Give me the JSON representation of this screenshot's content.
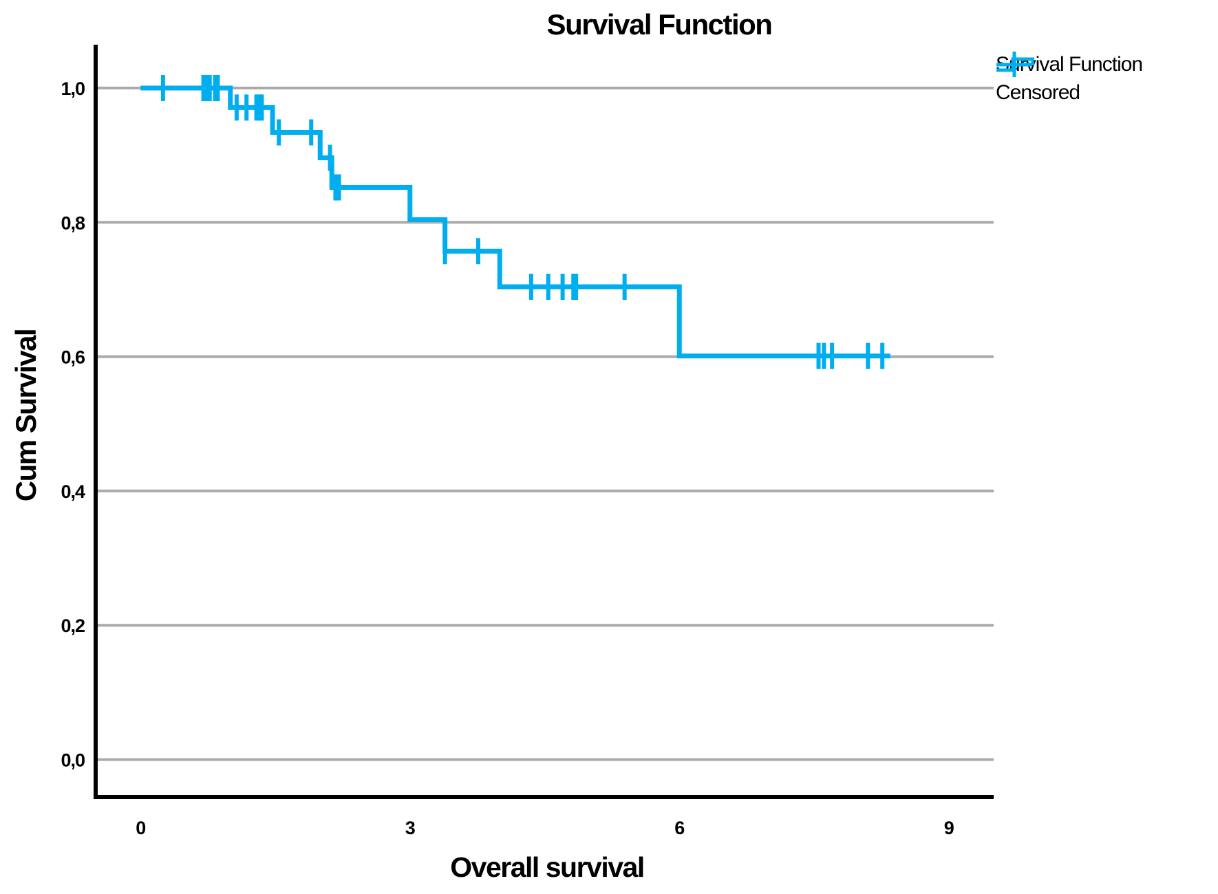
{
  "title": "Survival Function",
  "legend": {
    "items": [
      {
        "label": "Survival Function",
        "symbol": "step-line"
      },
      {
        "label": "Censored",
        "symbol": "plus"
      }
    ]
  },
  "chart_data": {
    "type": "line",
    "subtype": "kaplan-meier-step",
    "title": "Survival Function",
    "xlabel": "Overall survival",
    "ylabel": "Cum Survival",
    "xlim": [
      -0.5,
      9.5
    ],
    "ylim": [
      0,
      1.0
    ],
    "grid": true,
    "legend_position": "top-right",
    "decimal_separator": ",",
    "xticks": [
      {
        "value": 0,
        "label": "0"
      },
      {
        "value": 3,
        "label": "3"
      },
      {
        "value": 6,
        "label": "6"
      },
      {
        "value": 9,
        "label": "9"
      }
    ],
    "yticks": [
      {
        "value": 0.0,
        "label": "0,0"
      },
      {
        "value": 0.2,
        "label": "0,2"
      },
      {
        "value": 0.4,
        "label": "0,4"
      },
      {
        "value": 0.6,
        "label": "0,6"
      },
      {
        "value": 0.8,
        "label": "0,8"
      },
      {
        "value": 1.0,
        "label": "1,0"
      }
    ],
    "series": {
      "name": "Survival Function",
      "start_t": 0,
      "end_t": 8.35,
      "drop_times": [
        1.0,
        1.47,
        2.0,
        2.13,
        3.0,
        3.39,
        4.0,
        6.0
      ],
      "levels": [
        1.0,
        0.971,
        0.934,
        0.896,
        0.852,
        0.804,
        0.757,
        0.704,
        0.601
      ]
    },
    "censored": [
      {
        "t": 0.25,
        "s": 1.0
      },
      {
        "t": 0.7,
        "s": 1.0
      },
      {
        "t": 0.74,
        "s": 1.0
      },
      {
        "t": 0.77,
        "s": 1.0
      },
      {
        "t": 0.83,
        "s": 1.0
      },
      {
        "t": 0.86,
        "s": 1.0
      },
      {
        "t": 1.07,
        "s": 0.971
      },
      {
        "t": 1.18,
        "s": 0.971
      },
      {
        "t": 1.29,
        "s": 0.971
      },
      {
        "t": 1.32,
        "s": 0.971
      },
      {
        "t": 1.35,
        "s": 0.971
      },
      {
        "t": 1.54,
        "s": 0.934
      },
      {
        "t": 1.9,
        "s": 0.934
      },
      {
        "t": 2.11,
        "s": 0.896
      },
      {
        "t": 2.17,
        "s": 0.852
      },
      {
        "t": 2.21,
        "s": 0.852
      },
      {
        "t": 3.39,
        "s": 0.757
      },
      {
        "t": 3.76,
        "s": 0.757
      },
      {
        "t": 4.35,
        "s": 0.704
      },
      {
        "t": 4.54,
        "s": 0.704
      },
      {
        "t": 4.7,
        "s": 0.704
      },
      {
        "t": 4.82,
        "s": 0.704
      },
      {
        "t": 4.85,
        "s": 0.704
      },
      {
        "t": 5.39,
        "s": 0.704
      },
      {
        "t": 7.55,
        "s": 0.601
      },
      {
        "t": 7.61,
        "s": 0.601
      },
      {
        "t": 7.7,
        "s": 0.601
      },
      {
        "t": 8.1,
        "s": 0.601
      },
      {
        "t": 8.26,
        "s": 0.601
      }
    ],
    "colors": {
      "line": "#00AEEF",
      "grid": "#ABABAB",
      "axis": "#000000",
      "text": "#000000"
    }
  }
}
